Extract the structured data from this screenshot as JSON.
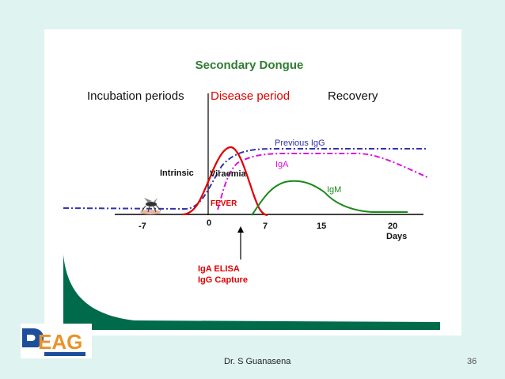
{
  "title": "Secondary Dongue",
  "phases": {
    "incubation": "Incubation periods",
    "disease": "Disease period",
    "recovery": "Recovery"
  },
  "labels": {
    "previous_igg": "Previous IgG",
    "iga": "IgA",
    "igm": "IgM",
    "intrinsic": "Intrinsic",
    "viraemia": "Viraemia",
    "fever": "FEVER",
    "iga_elisa": "IgA ELISA",
    "igg_capture": "IgG Capture"
  },
  "axis": {
    "ticks": [
      "-7",
      "0",
      "7",
      "15",
      "20"
    ],
    "unit": "Days"
  },
  "footer": {
    "author": "Dr. S Guanasena",
    "page": "36"
  },
  "colors": {
    "background": "#dff3f1",
    "title_green": "#2e7d32",
    "fever_red": "#e00000",
    "igg_blue": "#3333aa",
    "iga_magenta": "#dd11dd",
    "igm_green": "#1a8a1a",
    "decay_green": "#006b4a",
    "logo_blue": "#1d4e9c",
    "logo_orange": "#e8932a"
  },
  "icons": [
    "mosquito-icon"
  ]
}
